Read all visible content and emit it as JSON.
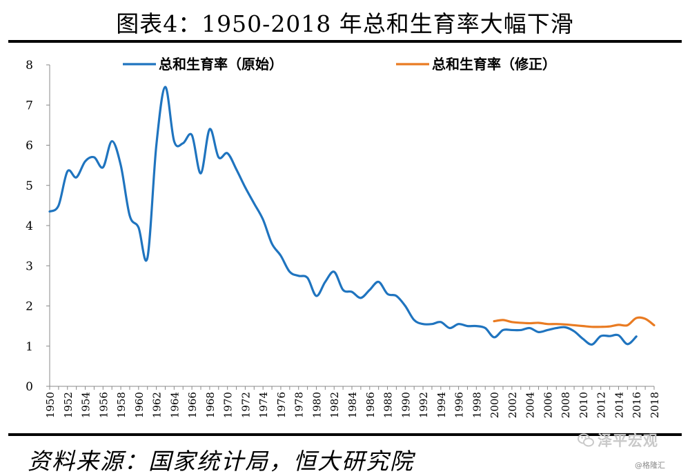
{
  "title": "图表4：1950-2018 年总和生育率大幅下滑",
  "source": "资料来源：国家统计局，恒大研究院",
  "watermark": "泽平宏观",
  "credit": "@格隆汇",
  "chart_data": {
    "type": "line",
    "title": "",
    "xlabel": "",
    "ylabel": "",
    "ylim": [
      0,
      8
    ],
    "xlim": [
      1950,
      2018
    ],
    "yticks": [
      0,
      1,
      2,
      3,
      4,
      5,
      6,
      7,
      8
    ],
    "xticks": [
      1950,
      1952,
      1954,
      1956,
      1958,
      1960,
      1962,
      1964,
      1966,
      1968,
      1970,
      1972,
      1974,
      1976,
      1978,
      1980,
      1982,
      1984,
      1986,
      1988,
      1990,
      1992,
      1994,
      1996,
      1998,
      2000,
      2002,
      2004,
      2006,
      2008,
      2010,
      2012,
      2014,
      2016,
      2018
    ],
    "grid": false,
    "legend": "top",
    "series": [
      {
        "name": "总和生育率（原始）",
        "color": "#1f74bf",
        "x": [
          1950,
          1951,
          1952,
          1953,
          1954,
          1955,
          1956,
          1957,
          1958,
          1959,
          1960,
          1961,
          1962,
          1963,
          1964,
          1965,
          1966,
          1967,
          1968,
          1969,
          1970,
          1971,
          1972,
          1973,
          1974,
          1975,
          1976,
          1977,
          1978,
          1979,
          1980,
          1981,
          1982,
          1983,
          1984,
          1985,
          1986,
          1987,
          1988,
          1989,
          1990,
          1991,
          1992,
          1993,
          1994,
          1995,
          1996,
          1997,
          1998,
          1999,
          2000,
          2001,
          2002,
          2003,
          2004,
          2005,
          2006,
          2007,
          2008,
          2009,
          2010,
          2011,
          2012,
          2013,
          2014,
          2015,
          2016
        ],
        "values": [
          4.35,
          4.5,
          5.35,
          5.2,
          5.6,
          5.7,
          5.45,
          6.1,
          5.5,
          4.25,
          3.95,
          3.2,
          6.0,
          7.45,
          6.1,
          6.05,
          6.25,
          5.3,
          6.4,
          5.7,
          5.8,
          5.4,
          4.95,
          4.55,
          4.15,
          3.55,
          3.25,
          2.85,
          2.75,
          2.7,
          2.25,
          2.6,
          2.85,
          2.4,
          2.35,
          2.2,
          2.4,
          2.6,
          2.3,
          2.25,
          2.0,
          1.65,
          1.55,
          1.55,
          1.6,
          1.45,
          1.55,
          1.5,
          1.5,
          1.45,
          1.22,
          1.4,
          1.4,
          1.4,
          1.45,
          1.35,
          1.4,
          1.45,
          1.47,
          1.37,
          1.18,
          1.04,
          1.25,
          1.25,
          1.27,
          1.05,
          1.24
        ]
      },
      {
        "name": "总和生育率（修正）",
        "color": "#e97b22",
        "x": [
          2000,
          2001,
          2002,
          2003,
          2004,
          2005,
          2006,
          2007,
          2008,
          2009,
          2010,
          2011,
          2012,
          2013,
          2014,
          2015,
          2016,
          2017,
          2018
        ],
        "values": [
          1.62,
          1.65,
          1.6,
          1.58,
          1.57,
          1.58,
          1.55,
          1.55,
          1.54,
          1.52,
          1.5,
          1.48,
          1.48,
          1.49,
          1.53,
          1.52,
          1.7,
          1.68,
          1.52
        ]
      }
    ]
  }
}
